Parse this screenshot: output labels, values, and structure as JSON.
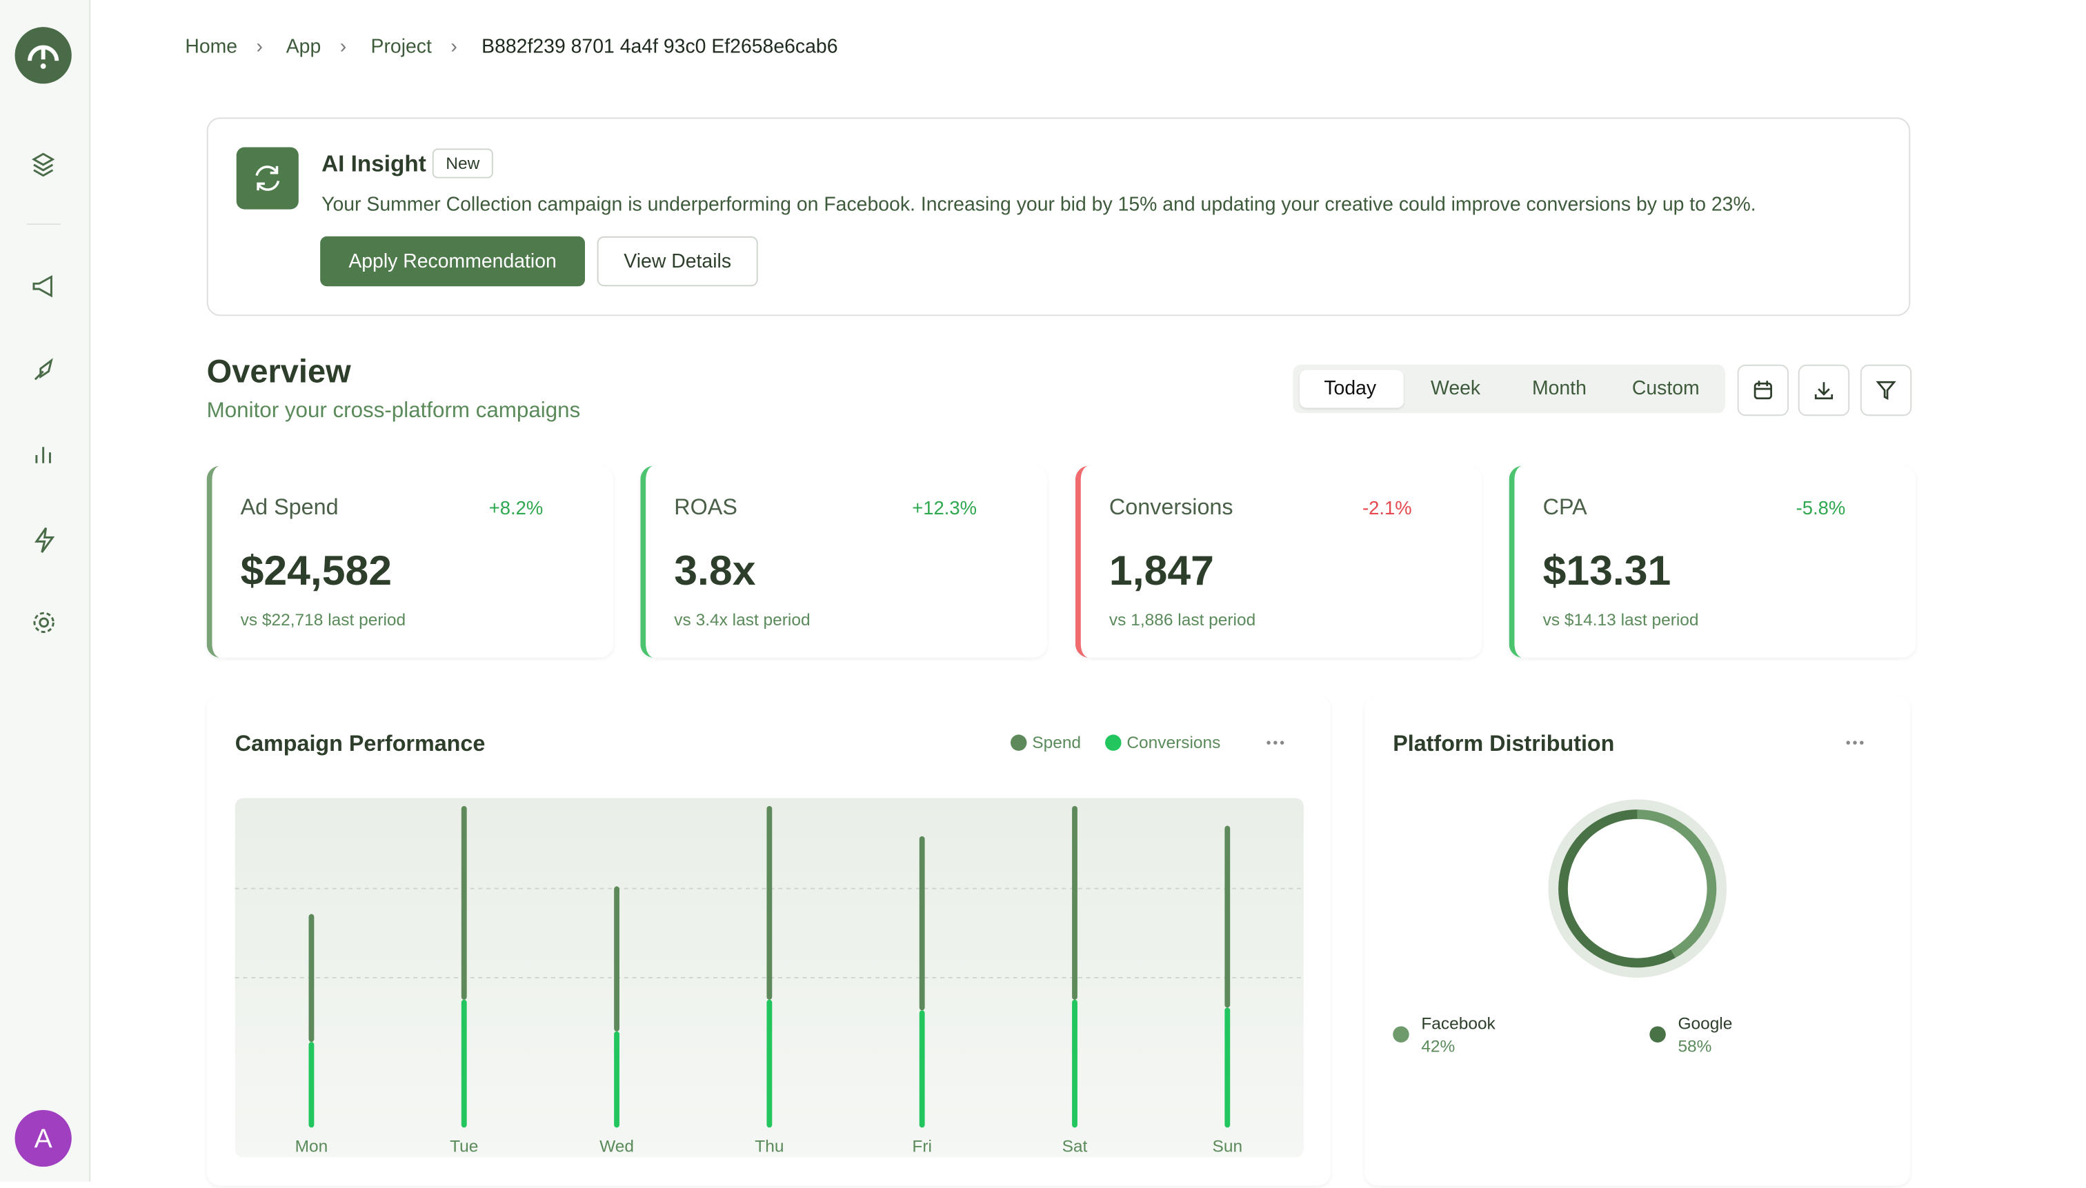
{
  "sidebar": {
    "avatar": "A"
  },
  "breadcrumb": [
    "Home",
    "App",
    "Project",
    "B882f239 8701 4a4f 93c0 Ef2658e6cab6"
  ],
  "insight": {
    "title": "AI Insight",
    "badge": "New",
    "text": "Your Summer Collection campaign is underperforming on Facebook. Increasing your bid by 15% and updating your creative could improve conversions by up to 23%.",
    "primary": "Apply Recommendation",
    "secondary": "View Details"
  },
  "overview": {
    "title": "Overview",
    "subtitle": "Monitor your cross-platform campaigns",
    "periods": [
      "Today",
      "Week",
      "Month",
      "Custom"
    ]
  },
  "kpis": [
    {
      "label": "Ad Spend",
      "change": "+8.2%",
      "value": "$24,582",
      "compare": "vs $22,718 last period"
    },
    {
      "label": "ROAS",
      "change": "+12.3%",
      "value": "3.8x",
      "compare": "vs 3.4x last period"
    },
    {
      "label": "Conversions",
      "change": "-2.1%",
      "value": "1,847",
      "compare": "vs 1,886 last period"
    },
    {
      "label": "CPA",
      "change": "-5.8%",
      "value": "$13.31",
      "compare": "vs $14.13 last period"
    }
  ],
  "chart_data": [
    {
      "type": "bar",
      "title": "Campaign Performance",
      "stacked": true,
      "categories": [
        "Mon",
        "Tue",
        "Wed",
        "Thu",
        "Fri",
        "Sat",
        "Sun"
      ],
      "series": [
        {
          "name": "Spend",
          "color": "#5e8a5b",
          "values": [
            97,
            147,
            110,
            147,
            132,
            147,
            138
          ]
        },
        {
          "name": "Conversions",
          "color": "#22c55e",
          "values": [
            65,
            97,
            73,
            97,
            89,
            97,
            91
          ]
        }
      ],
      "ylim": [
        0,
        250
      ]
    },
    {
      "type": "pie",
      "title": "Platform Distribution",
      "categories": [
        "Facebook",
        "Google"
      ],
      "values": [
        42,
        58
      ],
      "value_labels": [
        "42%",
        "58%"
      ],
      "colors": [
        "#6f9a6c",
        "#4a7247"
      ]
    }
  ]
}
